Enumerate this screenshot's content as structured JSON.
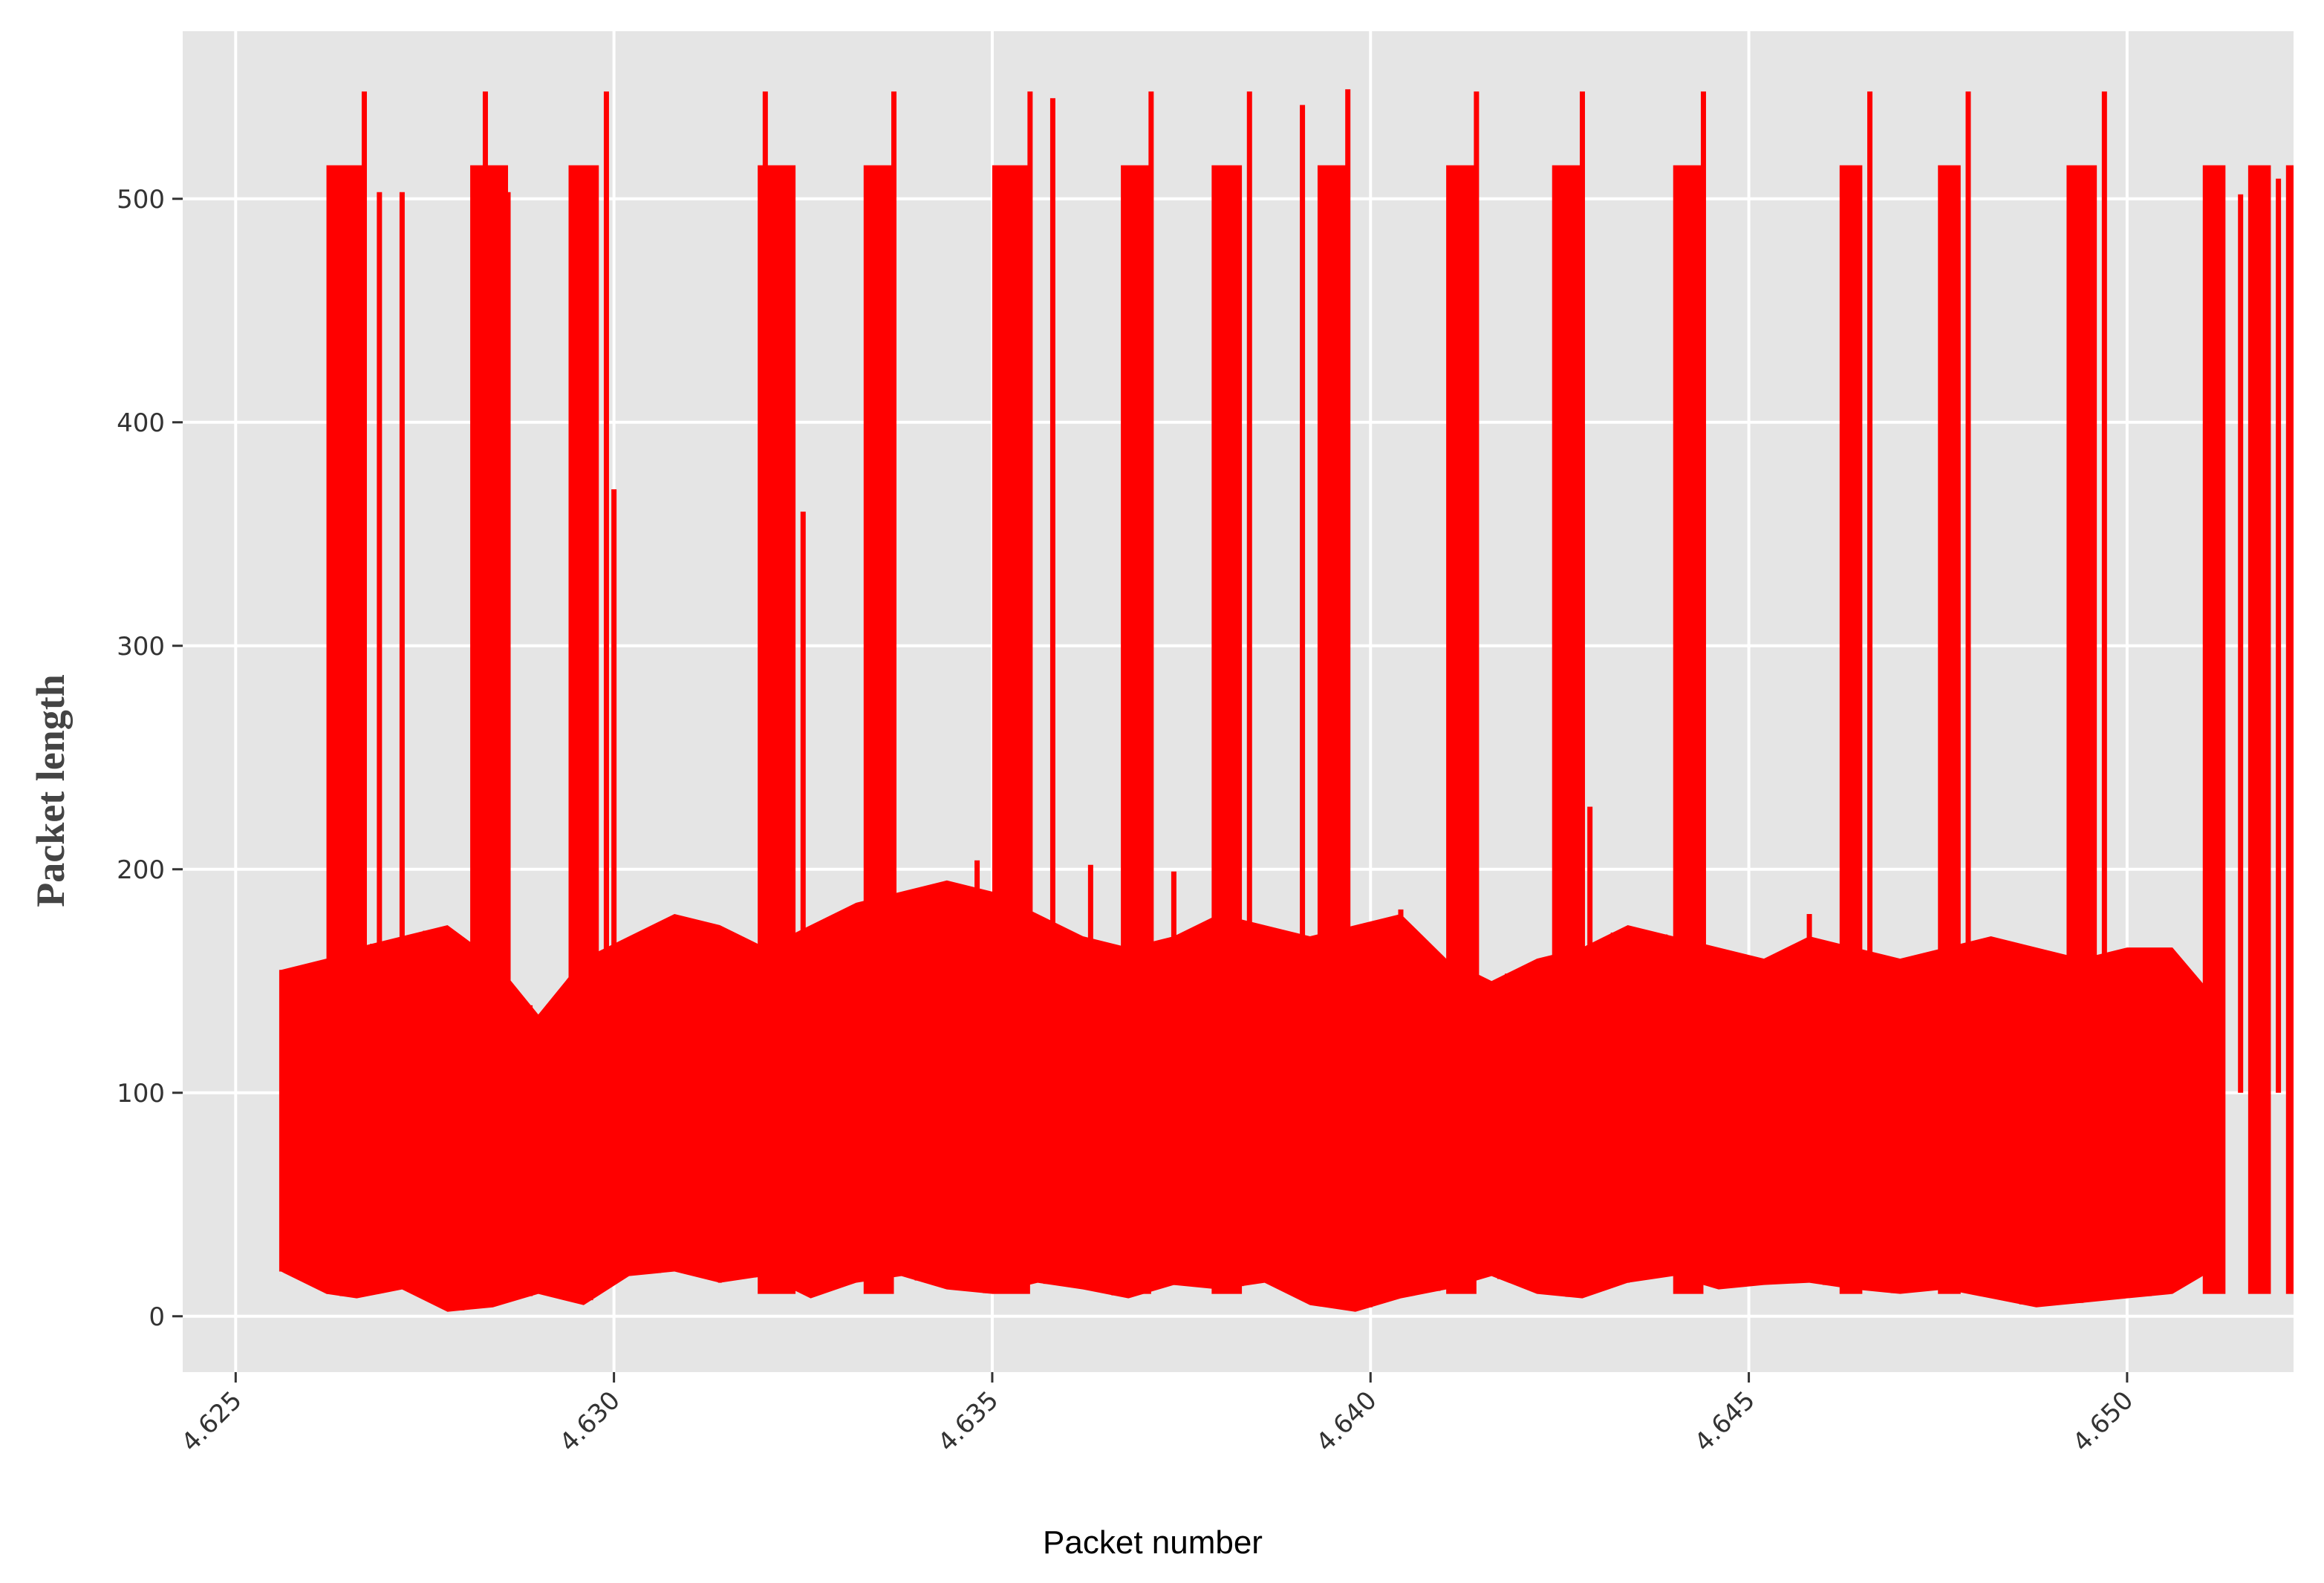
{
  "chart_data": {
    "type": "line",
    "xlabel": "Packet number",
    "ylabel": "Packet length",
    "x_ticks": [
      "4.625",
      "4.630",
      "4.635",
      "4.640",
      "4.645",
      "4.650"
    ],
    "y_ticks": [
      "0",
      "100",
      "200",
      "300",
      "400",
      "500"
    ],
    "xlim": [
      4.6243,
      4.6522
    ],
    "ylim": [
      -25,
      575
    ],
    "grid": true,
    "legend": "none",
    "line_color": "#ff0000",
    "panel_color": "#e5e5e5",
    "grid_color": "#ffffff",
    "series": [
      {
        "band": [
          [
            4.6256,
            20,
            155
          ],
          [
            4.6262,
            10,
            160
          ],
          [
            4.6266,
            8,
            165
          ],
          [
            4.6272,
            12,
            170
          ],
          [
            4.6278,
            2,
            175
          ],
          [
            4.6284,
            4,
            160
          ],
          [
            4.629,
            10,
            135
          ],
          [
            4.6296,
            5,
            160
          ],
          [
            4.6302,
            18,
            170
          ],
          [
            4.6308,
            20,
            180
          ],
          [
            4.6314,
            15,
            175
          ],
          [
            4.632,
            18,
            165
          ],
          [
            4.6326,
            8,
            175
          ],
          [
            4.6332,
            15,
            185
          ],
          [
            4.6338,
            18,
            190
          ],
          [
            4.6344,
            12,
            195
          ],
          [
            4.635,
            10,
            190
          ],
          [
            4.6356,
            15,
            180
          ],
          [
            4.6362,
            12,
            170
          ],
          [
            4.6368,
            8,
            165
          ],
          [
            4.6374,
            14,
            170
          ],
          [
            4.638,
            12,
            180
          ],
          [
            4.6386,
            15,
            175
          ],
          [
            4.6392,
            5,
            170
          ],
          [
            4.6398,
            2,
            175
          ],
          [
            4.6404,
            8,
            180
          ],
          [
            4.641,
            12,
            160
          ],
          [
            4.6416,
            18,
            150
          ],
          [
            4.6422,
            10,
            160
          ],
          [
            4.6428,
            8,
            165
          ],
          [
            4.6434,
            15,
            175
          ],
          [
            4.644,
            18,
            170
          ],
          [
            4.6446,
            12,
            165
          ],
          [
            4.6452,
            14,
            160
          ],
          [
            4.6458,
            15,
            170
          ],
          [
            4.6464,
            12,
            165
          ],
          [
            4.647,
            10,
            160
          ],
          [
            4.6476,
            12,
            165
          ],
          [
            4.6482,
            8,
            170
          ],
          [
            4.6488,
            4,
            165
          ],
          [
            4.6494,
            6,
            160
          ],
          [
            4.65,
            8,
            165
          ],
          [
            4.6506,
            10,
            165
          ],
          [
            4.6511,
            20,
            145
          ]
        ],
        "bursts": [
          [
            4.6262,
            4.6267,
            515
          ],
          [
            4.6281,
            4.6286,
            515
          ],
          [
            4.6294,
            4.6298,
            515
          ],
          [
            4.6319,
            4.6324,
            515
          ],
          [
            4.6333,
            4.6337,
            515
          ],
          [
            4.635,
            4.6355,
            515
          ],
          [
            4.6367,
            4.6371,
            515
          ],
          [
            4.6379,
            4.6383,
            515
          ],
          [
            4.6393,
            4.6397,
            515
          ],
          [
            4.641,
            4.6414,
            515
          ],
          [
            4.6424,
            4.6428,
            515
          ],
          [
            4.644,
            4.6444,
            515
          ],
          [
            4.6462,
            4.6465,
            515
          ],
          [
            4.6475,
            4.6478,
            515
          ],
          [
            4.6492,
            4.6496,
            515
          ],
          [
            4.651,
            4.6513,
            515
          ],
          [
            4.6516,
            4.6519,
            515
          ],
          [
            4.6521,
            4.6522,
            515
          ]
        ],
        "peaks": [
          [
            4.6267,
            548
          ],
          [
            4.6269,
            503
          ],
          [
            4.6272,
            503
          ],
          [
            4.6283,
            548
          ],
          [
            4.6286,
            503
          ],
          [
            4.6299,
            548
          ],
          [
            4.63,
            370
          ],
          [
            4.632,
            548
          ],
          [
            4.6322,
            503
          ],
          [
            4.6325,
            360
          ],
          [
            4.6337,
            548
          ],
          [
            4.6355,
            548
          ],
          [
            4.6358,
            545
          ],
          [
            4.6371,
            548
          ],
          [
            4.6384,
            548
          ],
          [
            4.6391,
            542
          ],
          [
            4.6397,
            549
          ],
          [
            4.6414,
            548
          ],
          [
            4.6428,
            548
          ],
          [
            4.6444,
            548
          ],
          [
            4.6466,
            548
          ],
          [
            4.6479,
            548
          ],
          [
            4.6497,
            548
          ],
          [
            4.6512,
            502
          ],
          [
            4.6515,
            502
          ],
          [
            4.652,
            509
          ],
          [
            4.6299,
            222
          ],
          [
            4.6336,
            250
          ],
          [
            4.6348,
            204
          ],
          [
            4.6363,
            202
          ],
          [
            4.6374,
            199
          ],
          [
            4.6404,
            182
          ],
          [
            4.6429,
            228
          ],
          [
            4.6458,
            180
          ]
        ]
      }
    ]
  }
}
